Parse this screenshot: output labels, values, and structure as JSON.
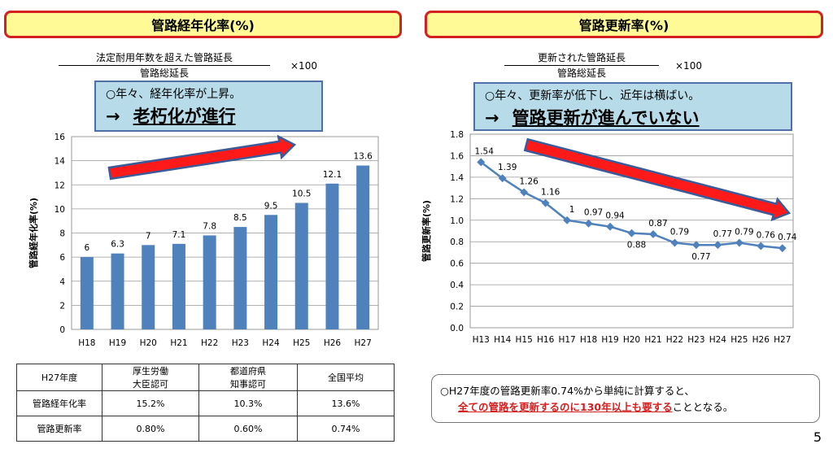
{
  "left": {
    "header": "管路経年化率(%)",
    "numerator": "法定耐用年数を超えた管路延長",
    "denominator": "管路総延長",
    "times": "×100",
    "callout_line1": "○年々、経年化率が上昇。",
    "callout_arrow": "→",
    "callout_line2": "老朽化が進行"
  },
  "right": {
    "header": "管路更新率(%)",
    "numerator": "更新された管路延長",
    "denominator": "管路総延長",
    "times": "×100",
    "callout_line1": "○年々、更新率が低下し、近年は横ばい。",
    "callout_arrow": "→",
    "callout_line2": "管路更新が進んでいない"
  },
  "chart_data": [
    {
      "type": "bar",
      "title": "管路経年化率(%)",
      "ylabel": "管路経年化率(%)",
      "categories": [
        "H18",
        "H19",
        "H20",
        "H21",
        "H22",
        "H23",
        "H24",
        "H25",
        "H26",
        "H27"
      ],
      "values": [
        6,
        6.3,
        7,
        7.1,
        7.8,
        8.5,
        9.5,
        10.5,
        12.1,
        13.6
      ],
      "labels": [
        "6",
        "6.3",
        "7",
        "7.1",
        "7.8",
        "8.5",
        "9.5",
        "10.5",
        "12.1",
        "13.6"
      ],
      "ylim": [
        0,
        16
      ],
      "yticks": [
        "0",
        "2",
        "4",
        "6",
        "8",
        "10",
        "12",
        "14",
        "16"
      ],
      "color": "#4f81bd",
      "grid": true
    },
    {
      "type": "line",
      "title": "管路更新率(%)",
      "ylabel": "管路更新率(%)",
      "categories": [
        "H13",
        "H14",
        "H15",
        "H16",
        "H17",
        "H18",
        "H19",
        "H20",
        "H21",
        "H22",
        "H23",
        "H24",
        "H25",
        "H26",
        "H27"
      ],
      "values": [
        1.54,
        1.39,
        1.26,
        1.16,
        1.0,
        0.97,
        0.94,
        0.88,
        0.87,
        0.79,
        0.77,
        0.77,
        0.79,
        0.76,
        0.74
      ],
      "labels": [
        "1.54",
        "1.39",
        "1.26",
        "1.16",
        "1",
        "0.97",
        "0.94",
        "0.88",
        "0.87",
        "0.79",
        "0.77",
        "0.77",
        "0.79",
        "0.76",
        "0.74"
      ],
      "ylim": [
        0,
        1.8
      ],
      "yticks": [
        "0.0",
        "0.2",
        "0.4",
        "0.6",
        "0.8",
        "1.0",
        "1.2",
        "1.4",
        "1.6",
        "1.8"
      ],
      "color": "#4f81bd",
      "grid": true
    }
  ],
  "table": {
    "headers": [
      "H27年度",
      "厚生労働\n大臣認可",
      "都道府県\n知事認可",
      "全国平均"
    ],
    "rows": [
      [
        "管路経年化率",
        "15.2%",
        "10.3%",
        "13.6%"
      ],
      [
        "管路更新率",
        "0.80%",
        "0.60%",
        "0.74%"
      ]
    ]
  },
  "note": {
    "line1": "○H27年度の管路更新率0.74%から単純に計算すると、",
    "line2_red": "全ての管路を更新するのに130年以上も要する",
    "line2_rest": "こととなる。"
  },
  "page_number": "5"
}
